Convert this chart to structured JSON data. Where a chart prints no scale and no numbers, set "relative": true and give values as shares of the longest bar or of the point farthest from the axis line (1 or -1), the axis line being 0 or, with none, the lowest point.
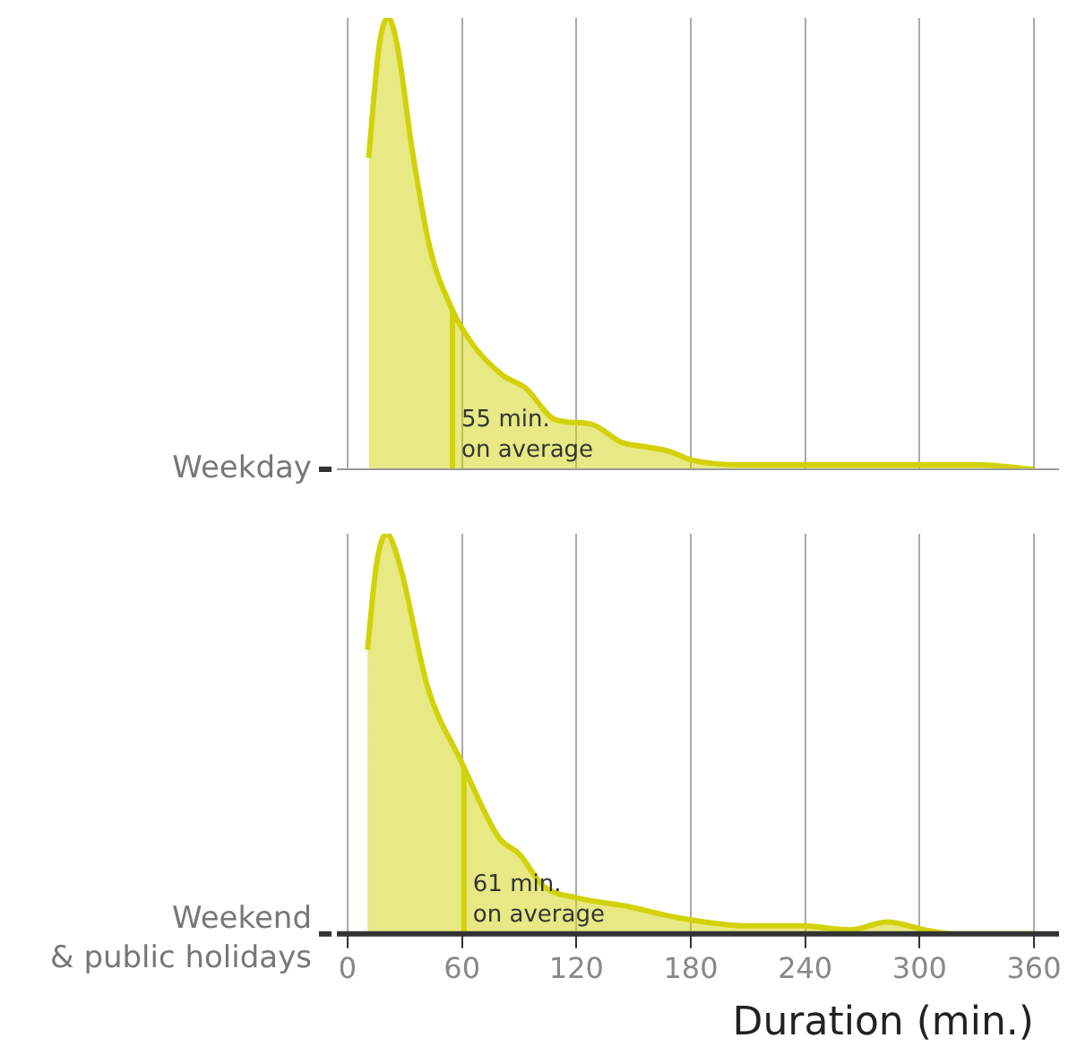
{
  "chart_data": [
    {
      "type": "area",
      "relative": true,
      "xlim": [
        0,
        360
      ],
      "xticks": [
        0,
        60,
        120,
        180,
        240,
        300,
        360
      ],
      "grid": "x",
      "tick_labels": false,
      "legend": false,
      "series": [
        {
          "name": "Weekday",
          "color": "#d2d20a",
          "x": [
            11,
            16.6,
            21.3,
            26,
            33.8,
            43.2,
            54.2,
            65,
            80.8,
            93.3,
            109,
            127.8,
            143.5,
            156,
            168.5,
            181,
            206,
            247,
            268.8,
            300,
            331.5,
            359.7
          ],
          "values": [
            0.69,
            0.94,
            1,
            0.94,
            0.71,
            0.49,
            0.36,
            0.28,
            0.21,
            0.18,
            0.11,
            0.1,
            0.06,
            0.05,
            0.04,
            0.02,
            0.01,
            0.01,
            0.01,
            0.01,
            0.01,
            0
          ]
        }
      ],
      "ref_lines": [
        {
          "axis": "x",
          "value": 55,
          "label": "55 min.\non average"
        }
      ]
    },
    {
      "type": "area",
      "relative": true,
      "xlim": [
        0,
        360
      ],
      "xticks": [
        0,
        60,
        120,
        180,
        240,
        300,
        360
      ],
      "grid": "x",
      "tick_labels": "x",
      "legend": false,
      "xlabel": "Duration (min.)",
      "series": [
        {
          "name": "Weekend\n& public holidays",
          "color": "#d2d20a",
          "x": [
            10.4,
            15,
            20.4,
            27.5,
            41.8,
            59.7,
            79.4,
            90,
            102.6,
            120.5,
            145.5,
            174,
            210,
            238.5,
            263.5,
            283,
            303,
            317,
            360
          ],
          "values": [
            0.71,
            0.92,
            1,
            0.92,
            0.62,
            0.43,
            0.24,
            0.2,
            0.12,
            0.09,
            0.07,
            0.04,
            0.02,
            0.02,
            0.01,
            0.03,
            0.01,
            0,
            0
          ]
        }
      ],
      "ref_lines": [
        {
          "axis": "x",
          "value": 61,
          "label": "61 min.\non average"
        }
      ]
    }
  ]
}
